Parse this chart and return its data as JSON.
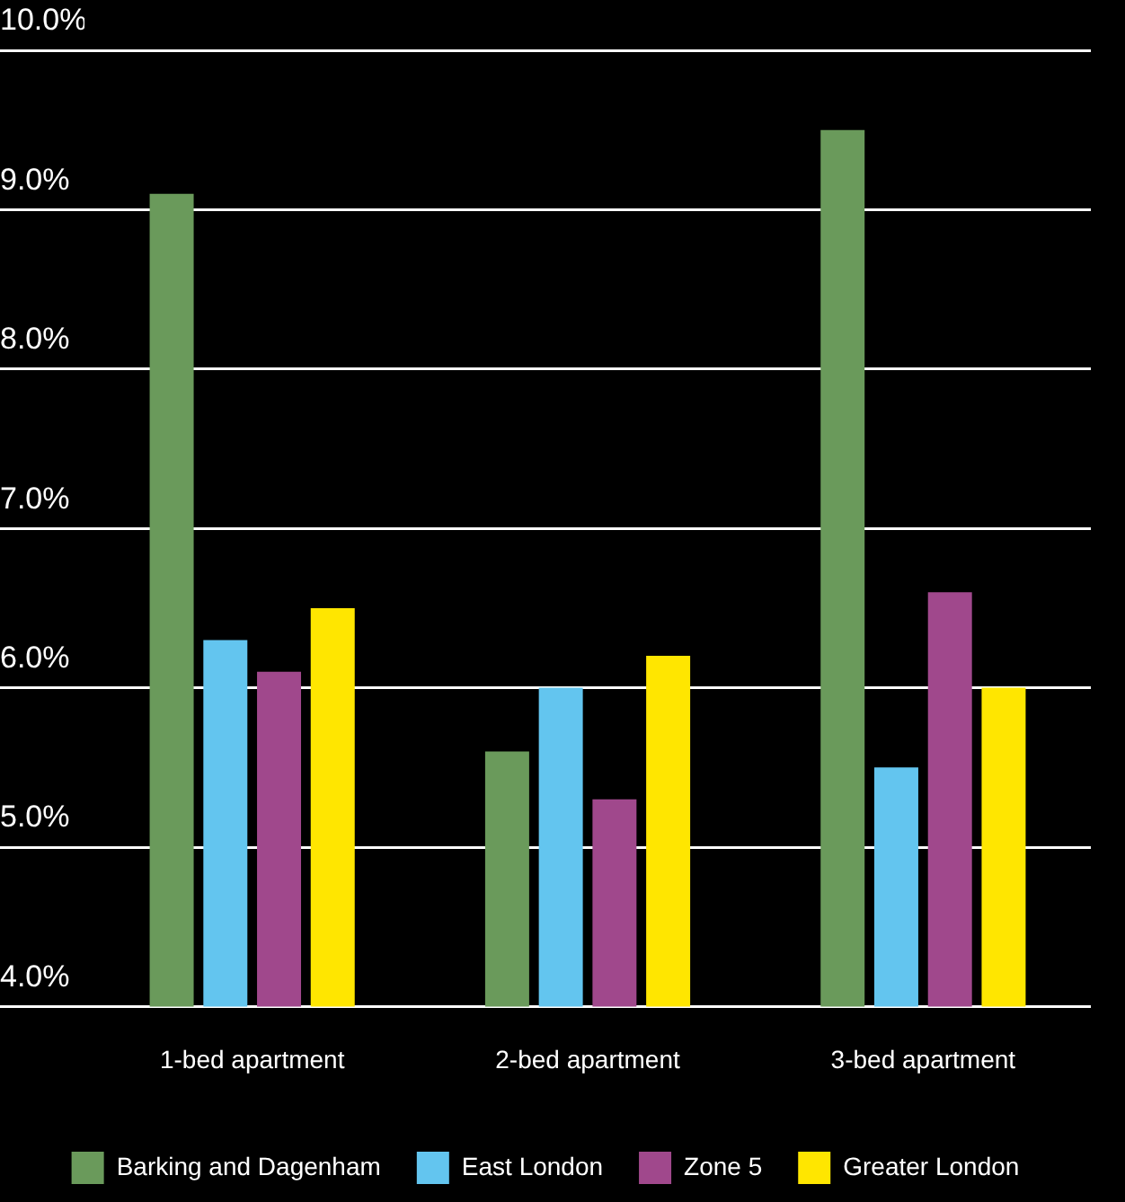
{
  "chart_data": {
    "type": "bar",
    "categories": [
      "1-bed apartment",
      "2-bed apartment",
      "3-bed apartment"
    ],
    "series": [
      {
        "name": "Barking and Dagenham",
        "color": "#6a9a5b",
        "values": [
          9.1,
          5.6,
          9.5
        ]
      },
      {
        "name": "East London",
        "color": "#63c5ef",
        "values": [
          6.3,
          6.0,
          5.5
        ]
      },
      {
        "name": "Zone 5",
        "color": "#a0488c",
        "values": [
          6.1,
          5.3,
          6.6
        ]
      },
      {
        "name": "Greater London",
        "color": "#ffe600",
        "values": [
          6.5,
          6.2,
          6.0
        ]
      }
    ],
    "ylim": [
      4,
      10
    ],
    "yticks": [
      {
        "value": 4,
        "label": "4.0%"
      },
      {
        "value": 5,
        "label": "5.0%"
      },
      {
        "value": 6,
        "label": "6.0%"
      },
      {
        "value": 7,
        "label": "7.0%"
      },
      {
        "value": 8,
        "label": "8.0%"
      },
      {
        "value": 9,
        "label": "9.0%"
      },
      {
        "value": 10,
        "label": "10.0%"
      }
    ],
    "grid": "y",
    "legend": "bottom"
  }
}
